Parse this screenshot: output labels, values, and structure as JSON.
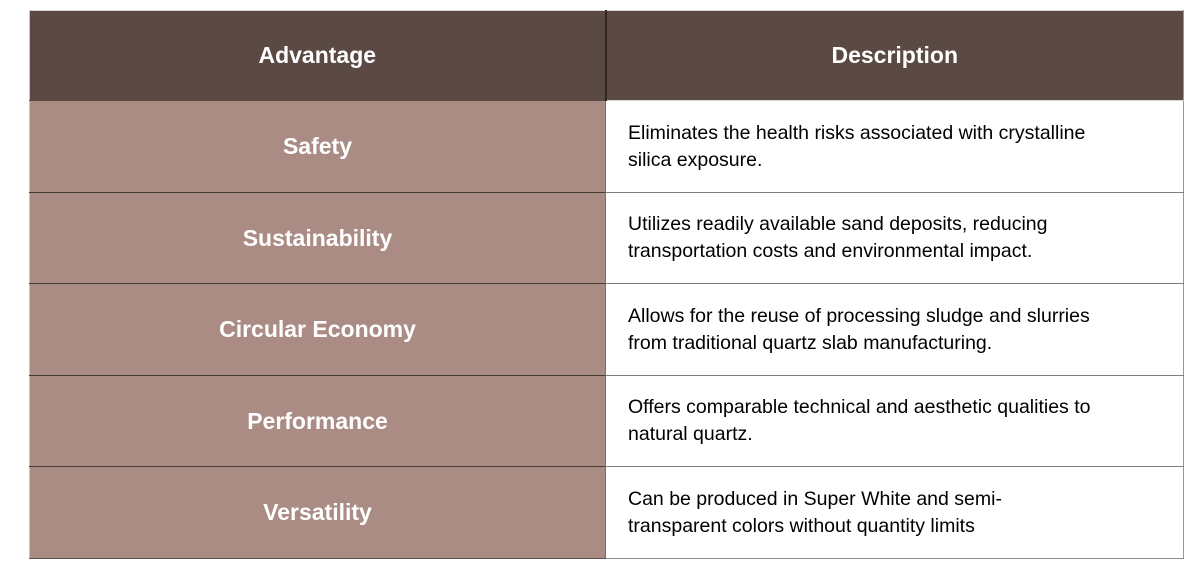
{
  "table": {
    "columns": [
      "Advantage",
      "Description"
    ],
    "rows": [
      {
        "advantage": "Safety",
        "description": "Eliminates the health risks associated with crystalline silica exposure."
      },
      {
        "advantage": "Sustainability",
        "description": "Utilizes readily available sand deposits, reducing transportation costs and environmental impact."
      },
      {
        "advantage": "Circular Economy",
        "description": "Allows for the reuse of processing sludge and slurries from traditional quartz slab manufacturing."
      },
      {
        "advantage": "Performance",
        "description": "Offers comparable technical and aesthetic qualities to natural quartz."
      },
      {
        "advantage": "Versatility",
        "description": "Can be produced in Super White and semi-transparent colors without quantity limits"
      }
    ],
    "colors": {
      "header_bg": "#5b4a43",
      "advantage_bg": "#aa8c85",
      "description_bg": "#ffffff",
      "header_text": "#ffffff",
      "advantage_text": "#ffffff",
      "description_text": "#000000"
    }
  }
}
